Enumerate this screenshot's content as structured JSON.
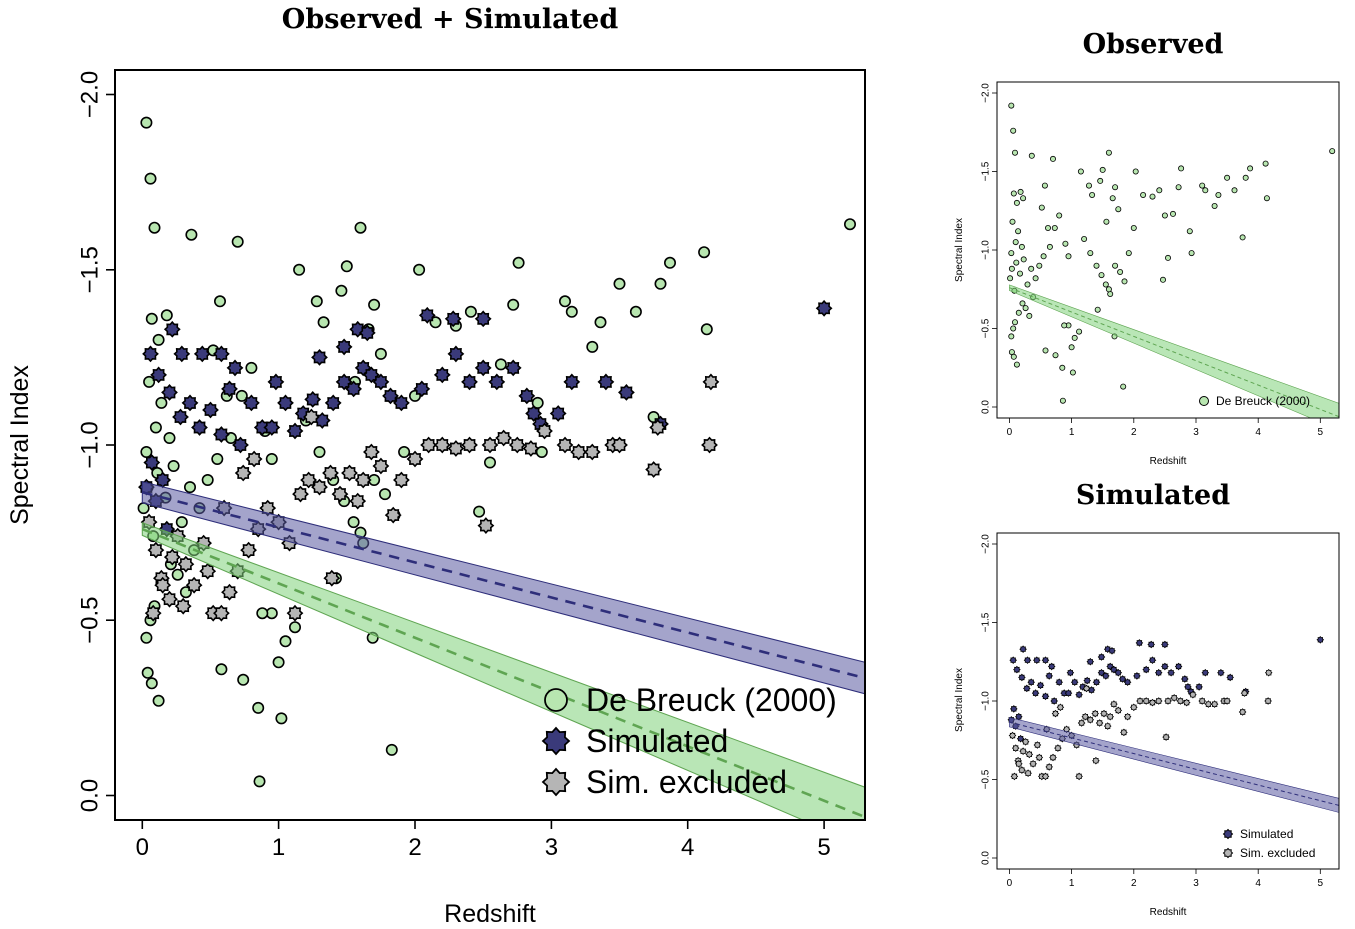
{
  "colors": {
    "observed_fill": "#b8e6b0",
    "observed_line": "#5fa552",
    "observed_band": "#7fd27a",
    "simulated_fill": "#3a3a7a",
    "simulated_band": "#5a5aa0",
    "excluded_fill": "#b5b5b5",
    "axis": "#000000"
  },
  "chart_data": [
    {
      "type": "scatter",
      "title": "Observed + Simulated",
      "xlabel": "Redshift",
      "ylabel": "Spectral Index",
      "xlim": [
        -0.2,
        5.3
      ],
      "ylim": [
        0.07,
        -2.07
      ],
      "y_reversed": true,
      "xticks": [
        "0",
        "1",
        "2",
        "3",
        "4",
        "5"
      ],
      "yticks": [
        "0.0",
        "−0.5",
        "−1.0",
        "−1.5",
        "−2.0"
      ],
      "legend": {
        "placement": "bottom-right",
        "entries": [
          "De Breuck (2000)",
          "Simulated",
          "Sim. excluded"
        ]
      },
      "series": [
        {
          "name": "De Breuck (2000)",
          "marker": "circle",
          "points": [
            [
              0.03,
              -1.92
            ],
            [
              0.06,
              -1.76
            ],
            [
              0.09,
              -1.62
            ],
            [
              0.07,
              -1.36
            ],
            [
              0.12,
              -1.3
            ],
            [
              0.18,
              -1.37
            ],
            [
              0.22,
              -1.33
            ],
            [
              0.05,
              -1.18
            ],
            [
              0.1,
              -1.05
            ],
            [
              0.03,
              -0.98
            ],
            [
              0.14,
              -1.12
            ],
            [
              0.2,
              -1.02
            ],
            [
              0.04,
              -0.35
            ],
            [
              0.07,
              -0.32
            ],
            [
              0.12,
              -0.27
            ],
            [
              0.03,
              -0.45
            ],
            [
              0.06,
              -0.5
            ],
            [
              0.09,
              -0.54
            ],
            [
              0.15,
              -0.6
            ],
            [
              0.21,
              -0.66
            ],
            [
              0.26,
              -0.63
            ],
            [
              0.32,
              -0.58
            ],
            [
              0.38,
              -0.7
            ],
            [
              0.01,
              -0.82
            ],
            [
              0.04,
              -0.88
            ],
            [
              0.08,
              -0.74
            ],
            [
              0.11,
              -0.92
            ],
            [
              0.17,
              -0.85
            ],
            [
              0.23,
              -0.94
            ],
            [
              0.29,
              -0.78
            ],
            [
              0.35,
              -0.88
            ],
            [
              0.42,
              -0.82
            ],
            [
              0.48,
              -0.9
            ],
            [
              0.55,
              -0.96
            ],
            [
              0.36,
              -1.6
            ],
            [
              0.52,
              -1.27
            ],
            [
              0.57,
              -1.41
            ],
            [
              0.62,
              -1.14
            ],
            [
              0.7,
              -1.58
            ],
            [
              0.73,
              -1.14
            ],
            [
              0.8,
              -1.22
            ],
            [
              0.65,
              -1.02
            ],
            [
              0.9,
              -1.04
            ],
            [
              0.95,
              -0.96
            ],
            [
              0.58,
              -0.36
            ],
            [
              0.74,
              -0.33
            ],
            [
              0.85,
              -0.25
            ],
            [
              0.86,
              -0.04
            ],
            [
              1.0,
              -0.38
            ],
            [
              1.05,
              -0.44
            ],
            [
              1.02,
              -0.22
            ],
            [
              0.95,
              -0.52
            ],
            [
              0.88,
              -0.52
            ],
            [
              1.12,
              -0.48
            ],
            [
              1.15,
              -1.5
            ],
            [
              1.28,
              -1.41
            ],
            [
              1.33,
              -1.35
            ],
            [
              1.5,
              -1.51
            ],
            [
              1.46,
              -1.44
            ],
            [
              1.6,
              -1.62
            ],
            [
              1.66,
              -1.33
            ],
            [
              1.7,
              -1.4
            ],
            [
              1.56,
              -1.18
            ],
            [
              1.75,
              -1.26
            ],
            [
              1.2,
              -1.07
            ],
            [
              1.3,
              -0.98
            ],
            [
              1.4,
              -0.9
            ],
            [
              1.48,
              -0.84
            ],
            [
              1.55,
              -0.78
            ],
            [
              1.62,
              -0.72
            ],
            [
              1.7,
              -0.9
            ],
            [
              1.78,
              -0.86
            ],
            [
              1.85,
              -0.8
            ],
            [
              1.69,
              -0.45
            ],
            [
              1.83,
              -0.13
            ],
            [
              1.42,
              -0.62
            ],
            [
              1.6,
              -0.75
            ],
            [
              1.92,
              -0.98
            ],
            [
              2.0,
              -1.14
            ],
            [
              2.03,
              -1.5
            ],
            [
              2.15,
              -1.35
            ],
            [
              2.3,
              -1.34
            ],
            [
              2.41,
              -1.38
            ],
            [
              2.5,
              -1.22
            ],
            [
              2.63,
              -1.23
            ],
            [
              2.72,
              -1.4
            ],
            [
              2.76,
              -1.52
            ],
            [
              2.9,
              -1.12
            ],
            [
              2.93,
              -0.98
            ],
            [
              3.1,
              -1.41
            ],
            [
              3.15,
              -1.38
            ],
            [
              3.3,
              -1.28
            ],
            [
              3.36,
              -1.35
            ],
            [
              3.5,
              -1.46
            ],
            [
              3.62,
              -1.38
            ],
            [
              3.8,
              -1.46
            ],
            [
              3.87,
              -1.52
            ],
            [
              4.12,
              -1.55
            ],
            [
              4.14,
              -1.33
            ],
            [
              5.19,
              -1.63
            ],
            [
              2.47,
              -0.81
            ],
            [
              2.55,
              -0.95
            ],
            [
              3.75,
              -1.08
            ]
          ]
        },
        {
          "name": "Simulated",
          "marker": "star",
          "points": [
            [
              0.06,
              -1.26
            ],
            [
              0.12,
              -1.2
            ],
            [
              0.2,
              -1.15
            ],
            [
              0.28,
              -1.08
            ],
            [
              0.35,
              -1.12
            ],
            [
              0.42,
              -1.05
            ],
            [
              0.5,
              -1.1
            ],
            [
              0.58,
              -1.03
            ],
            [
              0.64,
              -1.16
            ],
            [
              0.72,
              -1.0
            ],
            [
              0.22,
              -1.33
            ],
            [
              0.29,
              -1.26
            ],
            [
              0.44,
              -1.26
            ],
            [
              0.58,
              -1.26
            ],
            [
              0.68,
              -1.22
            ],
            [
              0.03,
              -0.88
            ],
            [
              0.07,
              -0.95
            ],
            [
              0.1,
              -0.84
            ],
            [
              0.15,
              -0.9
            ],
            [
              0.18,
              -0.76
            ],
            [
              0.8,
              -1.12
            ],
            [
              0.88,
              -1.05
            ],
            [
              0.98,
              -1.18
            ],
            [
              1.05,
              -1.12
            ],
            [
              1.12,
              -1.04
            ],
            [
              1.18,
              -1.09
            ],
            [
              1.25,
              -1.13
            ],
            [
              1.32,
              -1.07
            ],
            [
              1.4,
              -1.12
            ],
            [
              1.48,
              -1.18
            ],
            [
              1.55,
              -1.16
            ],
            [
              1.62,
              -1.22
            ],
            [
              1.68,
              -1.2
            ],
            [
              1.75,
              -1.18
            ],
            [
              1.82,
              -1.14
            ],
            [
              1.9,
              -1.12
            ],
            [
              2.05,
              -1.16
            ],
            [
              2.2,
              -1.2
            ],
            [
              2.3,
              -1.26
            ],
            [
              2.4,
              -1.18
            ],
            [
              2.5,
              -1.22
            ],
            [
              2.6,
              -1.18
            ],
            [
              2.72,
              -1.22
            ],
            [
              2.82,
              -1.14
            ],
            [
              2.92,
              -1.06
            ],
            [
              3.05,
              -1.09
            ],
            [
              3.15,
              -1.18
            ],
            [
              3.4,
              -1.18
            ],
            [
              3.55,
              -1.15
            ],
            [
              3.8,
              -1.06
            ],
            [
              1.58,
              -1.33
            ],
            [
              1.65,
              -1.32
            ],
            [
              2.09,
              -1.37
            ],
            [
              2.28,
              -1.36
            ],
            [
              2.5,
              -1.36
            ],
            [
              1.3,
              -1.25
            ],
            [
              1.48,
              -1.28
            ],
            [
              0.95,
              -1.05
            ],
            [
              5.0,
              -1.39
            ],
            [
              2.87,
              -1.09
            ]
          ]
        },
        {
          "name": "Sim. excluded",
          "marker": "star",
          "points": [
            [
              0.05,
              -0.78
            ],
            [
              0.1,
              -0.7
            ],
            [
              0.14,
              -0.62
            ],
            [
              0.2,
              -0.56
            ],
            [
              0.26,
              -0.74
            ],
            [
              0.32,
              -0.66
            ],
            [
              0.38,
              -0.6
            ],
            [
              0.45,
              -0.72
            ],
            [
              0.52,
              -0.52
            ],
            [
              0.58,
              -0.52
            ],
            [
              0.64,
              -0.58
            ],
            [
              0.7,
              -0.64
            ],
            [
              0.78,
              -0.7
            ],
            [
              0.85,
              -0.76
            ],
            [
              0.92,
              -0.82
            ],
            [
              1.0,
              -0.78
            ],
            [
              1.08,
              -0.72
            ],
            [
              1.12,
              -0.52
            ],
            [
              1.16,
              -0.86
            ],
            [
              1.22,
              -0.9
            ],
            [
              1.3,
              -0.88
            ],
            [
              1.38,
              -0.92
            ],
            [
              1.45,
              -0.86
            ],
            [
              1.52,
              -0.92
            ],
            [
              1.58,
              -0.84
            ],
            [
              1.68,
              -0.98
            ],
            [
              1.75,
              -0.94
            ],
            [
              1.84,
              -0.8
            ],
            [
              1.9,
              -0.9
            ],
            [
              2.0,
              -0.96
            ],
            [
              2.1,
              -1.0
            ],
            [
              2.2,
              -1.0
            ],
            [
              2.3,
              -0.99
            ],
            [
              2.4,
              -1.0
            ],
            [
              2.55,
              -1.0
            ],
            [
              2.65,
              -1.02
            ],
            [
              2.75,
              -1.0
            ],
            [
              2.85,
              -0.99
            ],
            [
              2.95,
              -1.04
            ],
            [
              3.1,
              -1.0
            ],
            [
              3.2,
              -0.98
            ],
            [
              3.3,
              -0.98
            ],
            [
              3.45,
              -1.0
            ],
            [
              3.5,
              -1.0
            ],
            [
              3.75,
              -0.93
            ],
            [
              3.78,
              -1.05
            ],
            [
              4.16,
              -1.0
            ],
            [
              4.17,
              -1.18
            ],
            [
              2.52,
              -0.77
            ],
            [
              1.39,
              -0.62
            ],
            [
              0.08,
              -0.52
            ],
            [
              0.15,
              -0.6
            ],
            [
              0.22,
              -0.68
            ],
            [
              0.3,
              -0.54
            ],
            [
              0.48,
              -0.64
            ],
            [
              0.6,
              -0.82
            ],
            [
              0.74,
              -0.92
            ],
            [
              0.82,
              -0.96
            ],
            [
              1.24,
              -1.08
            ],
            [
              1.62,
              -0.9
            ]
          ]
        }
      ],
      "fits": [
        {
          "name": "De Breuck (2000)",
          "intercept": -0.76,
          "slope": 0.155,
          "band_at_x0": 0.018,
          "band_at_xmax": 0.085
        },
        {
          "name": "Simulated",
          "intercept": -0.865,
          "slope": 0.1,
          "band_at_x0": 0.03,
          "band_at_xmax": 0.045
        }
      ]
    },
    {
      "type": "scatter",
      "title": "Observed",
      "xlabel": "Redshift",
      "ylabel": "Spectral Index",
      "xlim": [
        -0.2,
        5.3
      ],
      "ylim": [
        0.07,
        -2.07
      ],
      "y_reversed": true,
      "xticks": [
        "0",
        "1",
        "2",
        "3",
        "4",
        "5"
      ],
      "yticks": [
        "0.0",
        "−0.5",
        "−1.0",
        "−1.5",
        "−2.0"
      ],
      "legend": {
        "placement": "bottom-right",
        "entries": [
          "De Breuck (2000)"
        ]
      }
    },
    {
      "type": "scatter",
      "title": "Simulated",
      "xlabel": "Redshift",
      "ylabel": "Spectral Index",
      "xlim": [
        -0.2,
        5.3
      ],
      "ylim": [
        0.07,
        -2.07
      ],
      "y_reversed": true,
      "xticks": [
        "0",
        "1",
        "2",
        "3",
        "4",
        "5"
      ],
      "yticks": [
        "0.0",
        "−0.5",
        "−1.0",
        "−1.5",
        "−2.0"
      ],
      "legend": {
        "placement": "bottom-right",
        "entries": [
          "Simulated",
          "Sim. excluded"
        ]
      }
    }
  ]
}
